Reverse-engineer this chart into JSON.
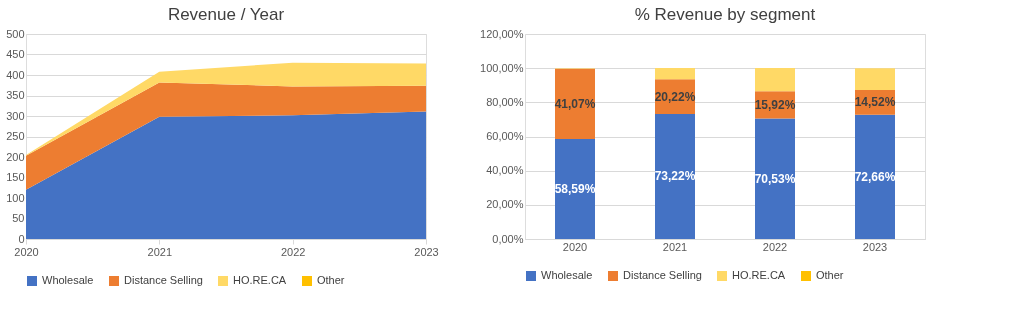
{
  "chart_data": [
    {
      "type": "area",
      "title": "Revenue / Year",
      "stacked": true,
      "x": [
        2020,
        2021,
        2022,
        2023
      ],
      "xlim": [
        2020,
        2023
      ],
      "xticks": [
        2020,
        2021,
        2022,
        2023
      ],
      "ylim": [
        0,
        500
      ],
      "yticks": [
        0,
        50,
        100,
        150,
        200,
        250,
        300,
        350,
        400,
        450,
        500
      ],
      "grid": "y",
      "legend": "bottom",
      "series": [
        {
          "name": "Wholesale",
          "color": "#4472c4",
          "values": [
            120,
            298,
            302,
            311
          ]
        },
        {
          "name": "Distance Selling",
          "color": "#ed7d31",
          "values": [
            83,
            84,
            70,
            63
          ]
        },
        {
          "name": "HO.RE.CA",
          "color": "#ffd966",
          "values": [
            2,
            26,
            58,
            54
          ]
        },
        {
          "name": "Other",
          "color": "#ffc000",
          "values": [
            null,
            null,
            null,
            null
          ]
        }
      ]
    },
    {
      "type": "bar",
      "title": "% Revenue by segment",
      "stacked": true,
      "categories": [
        "2020",
        "2021",
        "2022",
        "2023"
      ],
      "ylim": [
        0,
        120
      ],
      "yticks": [
        {
          "value": 0,
          "label": "0,00%"
        },
        {
          "value": 20,
          "label": "20,00%"
        },
        {
          "value": 40,
          "label": "40,00%"
        },
        {
          "value": 60,
          "label": "60,00%"
        },
        {
          "value": 80,
          "label": "80,00%"
        },
        {
          "value": 100,
          "label": "100,00%"
        },
        {
          "value": 120,
          "label": "120,00%"
        }
      ],
      "grid": "y",
      "legend": "bottom",
      "series": [
        {
          "name": "Wholesale",
          "color": "#4472c4",
          "values": [
            58.59,
            73.22,
            70.53,
            72.66
          ],
          "value_labels": [
            "58,59%",
            "73,22%",
            "70,53%",
            "72,66%"
          ]
        },
        {
          "name": "Distance Selling",
          "color": "#ed7d31",
          "values": [
            41.07,
            20.22,
            15.92,
            14.52
          ],
          "value_labels": [
            "41,07%",
            "20,22%",
            "15,92%",
            "14,52%"
          ]
        },
        {
          "name": "HO.RE.CA",
          "color": "#ffd966",
          "values": [
            0.3,
            6.6,
            13.6,
            12.8
          ]
        },
        {
          "name": "Other",
          "color": "#ffc000",
          "values": [
            null,
            null,
            null,
            null
          ]
        }
      ]
    }
  ]
}
